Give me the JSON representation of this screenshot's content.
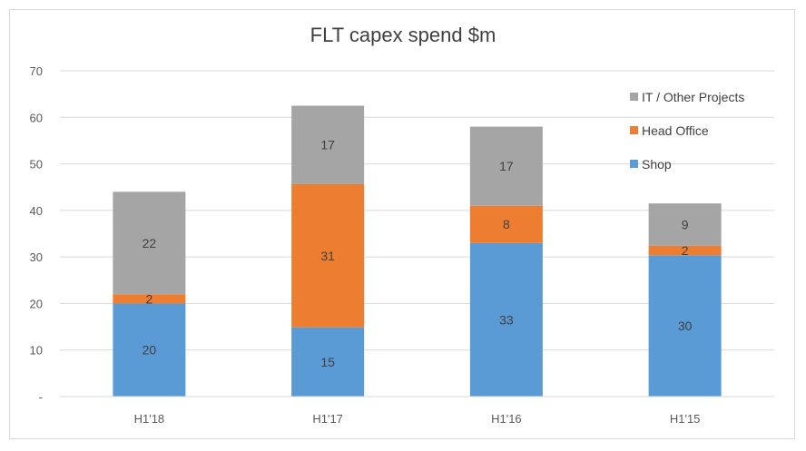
{
  "chart_data": {
    "type": "bar",
    "stacked": true,
    "title": "FLT capex spend $m",
    "categories": [
      "H1'18",
      "H1'17",
      "H1'16",
      "H1'15"
    ],
    "series": [
      {
        "name": "Shop",
        "values": [
          20,
          15,
          33,
          30
        ],
        "color": "#5b9bd5"
      },
      {
        "name": "Head Office",
        "values": [
          2,
          31,
          8,
          2
        ],
        "color": "#ed7d31"
      },
      {
        "name": "IT / Other Projects",
        "values": [
          22,
          17,
          17,
          9
        ],
        "color": "#a5a5a5"
      }
    ],
    "precise_totals": [
      44,
      62.5,
      58,
      41.5
    ],
    "ylim": [
      0,
      70
    ],
    "yticks": [
      0,
      10,
      20,
      30,
      40,
      50,
      60,
      70
    ],
    "ytick_labels": [
      "-",
      "10",
      "20",
      "30",
      "40",
      "50",
      "60",
      "70"
    ],
    "grid": true,
    "legend_position": "right",
    "legend_order": [
      "IT / Other Projects",
      "Head Office",
      "Shop"
    ]
  }
}
